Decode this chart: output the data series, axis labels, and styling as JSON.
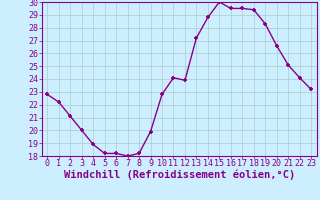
{
  "x": [
    0,
    1,
    2,
    3,
    4,
    5,
    6,
    7,
    8,
    9,
    10,
    11,
    12,
    13,
    14,
    15,
    16,
    17,
    18,
    19,
    20,
    21,
    22,
    23
  ],
  "y": [
    22.8,
    22.2,
    21.1,
    20.0,
    18.9,
    18.2,
    18.2,
    18.0,
    18.2,
    19.9,
    22.8,
    24.1,
    23.9,
    27.2,
    28.8,
    30.0,
    29.5,
    29.5,
    29.4,
    28.3,
    26.6,
    25.1,
    24.1,
    23.2
  ],
  "line_color": "#880088",
  "marker": "P",
  "bg_color": "#cceeff",
  "grid_color": "#aacccc",
  "xlabel": "Windchill (Refroidissement éolien,°C)",
  "ylim": [
    18,
    30
  ],
  "xlim": [
    -0.5,
    23.5
  ],
  "yticks": [
    18,
    19,
    20,
    21,
    22,
    23,
    24,
    25,
    26,
    27,
    28,
    29,
    30
  ],
  "xticks": [
    0,
    1,
    2,
    3,
    4,
    5,
    6,
    7,
    8,
    9,
    10,
    11,
    12,
    13,
    14,
    15,
    16,
    17,
    18,
    19,
    20,
    21,
    22,
    23
  ],
  "label_color": "#880088",
  "font_size_xlabel": 7.5,
  "font_size_ticks": 6.0,
  "spine_color": "#880088",
  "linewidth": 1.0,
  "markersize": 3.5
}
